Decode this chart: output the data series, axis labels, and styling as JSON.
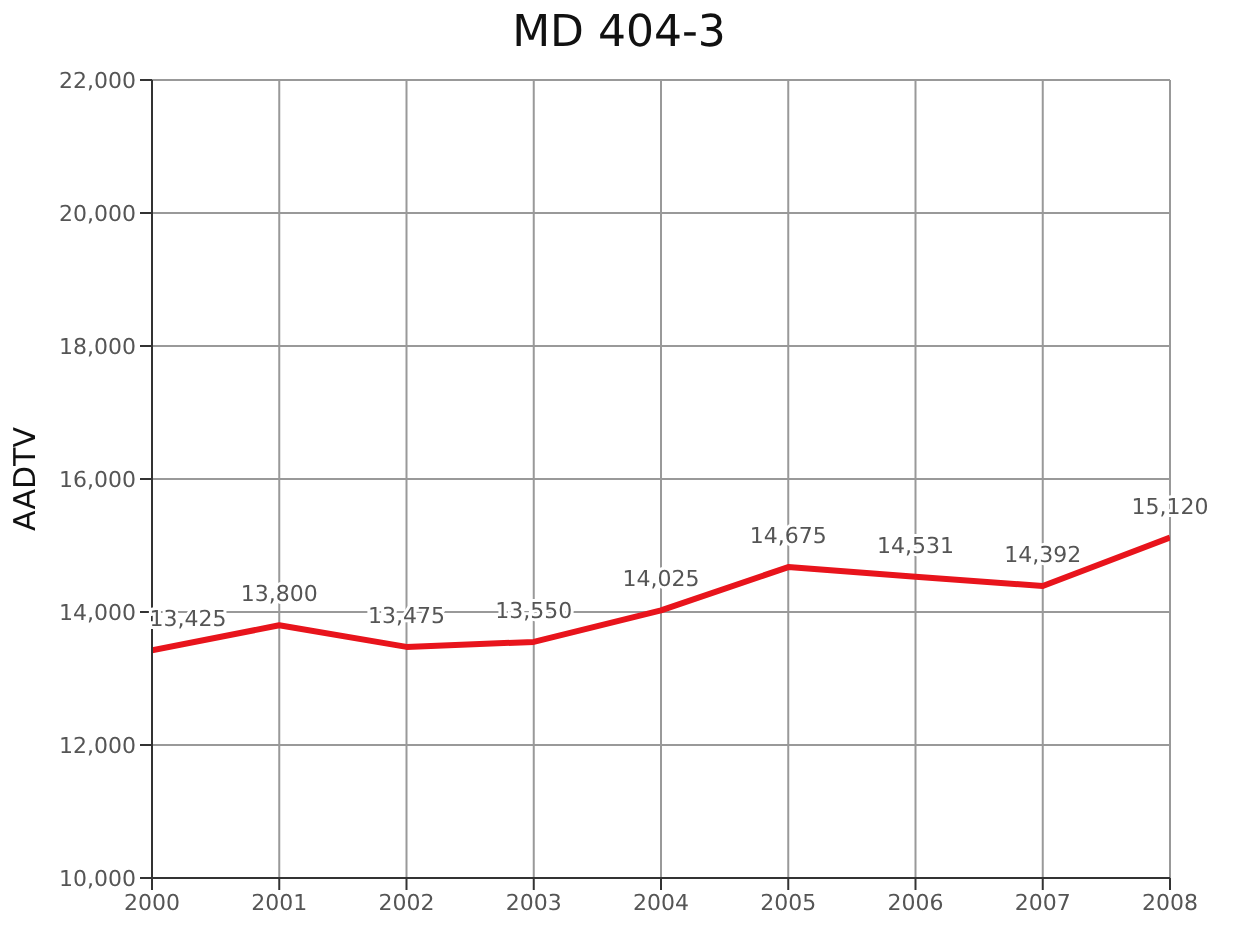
{
  "chart_data": {
    "type": "line",
    "title": "MD 404-3",
    "ylabel": "AADTV",
    "x": [
      2000,
      2001,
      2002,
      2003,
      2004,
      2005,
      2006,
      2007,
      2008
    ],
    "series": [
      {
        "color": "#e8141c",
        "values": [
          13425,
          13800,
          13475,
          13550,
          14025,
          14675,
          14531,
          14392,
          15120
        ],
        "value_labels": [
          "13,425",
          "13,800",
          "13,475",
          "13,550",
          "14,025",
          "14,675",
          "14,531",
          "14,392",
          "15,120"
        ]
      }
    ],
    "xlim": [
      2000,
      2008
    ],
    "xticks": [
      2000,
      2001,
      2002,
      2003,
      2004,
      2005,
      2006,
      2007,
      2008
    ],
    "ylim": [
      10000,
      22000
    ],
    "yticks": [
      {
        "value": 10000,
        "label": "10,000"
      },
      {
        "value": 12000,
        "label": "12,000"
      },
      {
        "value": 14000,
        "label": "14,000"
      },
      {
        "value": 16000,
        "label": "16,000"
      },
      {
        "value": 18000,
        "label": "18,000"
      },
      {
        "value": 20000,
        "label": "20,000"
      },
      {
        "value": 22000,
        "label": "22,000"
      }
    ],
    "grid": true,
    "marker": "none",
    "line_style": "solid",
    "legend": false
  }
}
